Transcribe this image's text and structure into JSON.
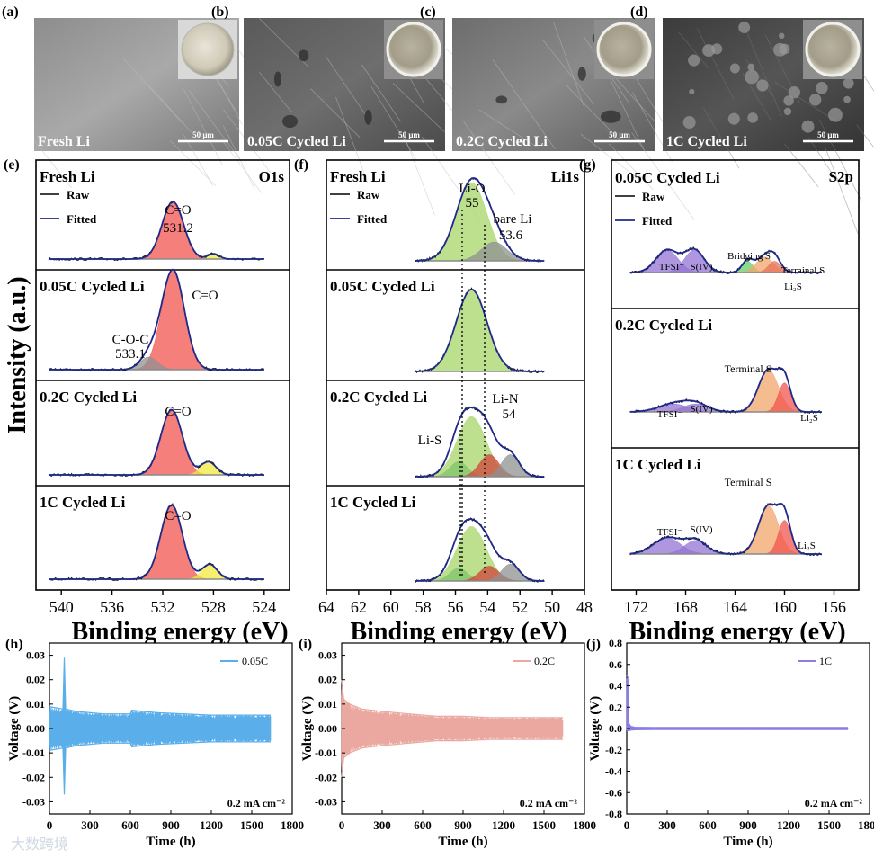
{
  "sem_panels": [
    {
      "letter": "(a)",
      "label": "Fresh Li",
      "scale": "50 μm"
    },
    {
      "letter": "(b)",
      "label": "0.05C Cycled Li",
      "scale": "50 μm"
    },
    {
      "letter": "(c)",
      "label": "0.2C Cycled Li",
      "scale": "50 μm"
    },
    {
      "letter": "(d)",
      "label": "1C Cycled Li",
      "scale": "50 μm"
    }
  ],
  "xps": {
    "y_label": "Intensity (a.u.)",
    "x_label": "Binding energy (eV)",
    "legend": {
      "raw": "Raw",
      "fitted": "Fitted"
    },
    "panels": [
      {
        "letter": "(e)",
        "element": "O1s",
        "xlim": [
          542,
          522
        ],
        "ticks": [
          540,
          536,
          532,
          528,
          524
        ],
        "rows": [
          {
            "label": "Fresh Li",
            "annotations": [
              "C=O",
              "531.2"
            ]
          },
          {
            "label": "0.05C Cycled Li",
            "annotations": [
              "C=O",
              "C-O-C",
              "533.1"
            ]
          },
          {
            "label": "0.2C Cycled Li",
            "annotations": [
              "C=O"
            ]
          },
          {
            "label": "1C Cycled Li",
            "annotations": [
              "C=O"
            ]
          }
        ]
      },
      {
        "letter": "(f)",
        "element": "Li1s",
        "xlim": [
          64,
          48
        ],
        "ticks": [
          64,
          62,
          60,
          58,
          56,
          54,
          52,
          50,
          48
        ],
        "rows": [
          {
            "label": "Fresh Li",
            "annotations": [
              "Li-O",
              "55",
              "bare Li",
              "53.6"
            ]
          },
          {
            "label": "0.05C Cycled Li",
            "annotations": []
          },
          {
            "label": "0.2C Cycled Li",
            "annotations": [
              "Li-N",
              "54",
              "Li-S"
            ]
          },
          {
            "label": "1C Cycled Li",
            "annotations": []
          }
        ]
      },
      {
        "letter": "(g)",
        "element": "S2p",
        "xlim": [
          174,
          154
        ],
        "ticks": [
          172,
          168,
          164,
          160,
          156
        ],
        "rows": [
          {
            "label": "0.05C Cycled Li",
            "annotations": [
              "TFSI⁻",
              "S(IV)",
              "Bridging S",
              "Terminal S",
              "Li₂S"
            ]
          },
          {
            "label": "0.2C Cycled Li",
            "annotations": [
              "Terminal S",
              "TFSI⁻",
              "S(IV)",
              "Li₂S"
            ]
          },
          {
            "label": "1C Cycled Li",
            "annotations": [
              "Terminal S",
              "TFSI⁻",
              "S(IV)",
              "Li₂S"
            ]
          }
        ]
      }
    ]
  },
  "chart_data": [
    {
      "type": "line",
      "panel": "(h)",
      "title": "",
      "xlabel": "Time (h)",
      "ylabel": "Voltage (V)",
      "xlim": [
        0,
        1800
      ],
      "ylim": [
        -0.035,
        0.035
      ],
      "xticks": [
        0,
        300,
        600,
        900,
        1200,
        1500,
        1800
      ],
      "yticks": [
        -0.03,
        -0.02,
        -0.01,
        0.0,
        0.01,
        0.02,
        0.03
      ],
      "ytick_labels": [
        "-0.03",
        "-0.02",
        "-0.01",
        "0.00",
        "0.01",
        "0.02",
        "0.03"
      ],
      "series": [
        {
          "name": "0.05C",
          "color": "#5aaeea",
          "envelope_x": [
            0,
            100,
            110,
            120,
            200,
            400,
            600,
            610,
            800,
            1000,
            1200,
            1400,
            1640
          ],
          "envelope_upper": [
            0.009,
            0.008,
            0.029,
            0.008,
            0.007,
            0.006,
            0.006,
            0.0075,
            0.0065,
            0.006,
            0.0055,
            0.0055,
            0.0055
          ],
          "envelope_lower": [
            -0.009,
            -0.008,
            -0.027,
            -0.008,
            -0.007,
            -0.006,
            -0.006,
            -0.0075,
            -0.0065,
            -0.006,
            -0.0055,
            -0.0055,
            -0.0055
          ]
        }
      ],
      "annotation": "0.2 mA cm⁻²"
    },
    {
      "type": "line",
      "panel": "(i)",
      "title": "",
      "xlabel": "Time (h)",
      "ylabel": "Voltage (V)",
      "xlim": [
        0,
        1800
      ],
      "ylim": [
        -0.035,
        0.035
      ],
      "xticks": [
        0,
        300,
        600,
        900,
        1200,
        1500,
        1800
      ],
      "yticks": [
        -0.03,
        -0.02,
        -0.01,
        0.0,
        0.01,
        0.02,
        0.03
      ],
      "ytick_labels": [
        "-0.03",
        "-0.02",
        "-0.01",
        "0.00",
        "0.01",
        "0.02",
        "0.03"
      ],
      "series": [
        {
          "name": "0.2C",
          "color": "#eba8a0",
          "envelope_x": [
            0,
            15,
            60,
            150,
            300,
            500,
            700,
            900,
            1100,
            1300,
            1500,
            1640
          ],
          "envelope_upper": [
            0.02,
            0.012,
            0.01,
            0.008,
            0.007,
            0.006,
            0.005,
            0.005,
            0.0045,
            0.0045,
            0.0045,
            0.0045
          ],
          "envelope_lower": [
            -0.02,
            -0.012,
            -0.01,
            -0.008,
            -0.007,
            -0.006,
            -0.005,
            -0.005,
            -0.0045,
            -0.0045,
            -0.0045,
            -0.0045
          ]
        }
      ],
      "annotation": "0.2 mA cm⁻²"
    },
    {
      "type": "line",
      "panel": "(j)",
      "title": "",
      "xlabel": "Time (h)",
      "ylabel": "Voltage (V)",
      "xlim": [
        0,
        1800
      ],
      "ylim": [
        -0.8,
        0.8
      ],
      "xticks": [
        0,
        300,
        600,
        900,
        1200,
        1500,
        1800
      ],
      "yticks": [
        -0.8,
        -0.6,
        -0.4,
        -0.2,
        0.0,
        0.2,
        0.4,
        0.6,
        0.8
      ],
      "ytick_labels": [
        "-0.8",
        "-0.6",
        "-0.4",
        "-0.2",
        "0.0",
        "0.2",
        "0.4",
        "0.6",
        "0.8"
      ],
      "series": [
        {
          "name": "1C",
          "color": "#8a7fe6",
          "envelope_x": [
            0,
            8,
            15,
            30,
            60,
            200,
            600,
            1000,
            1400,
            1640
          ],
          "envelope_upper": [
            0.5,
            0.48,
            0.05,
            0.02,
            0.012,
            0.01,
            0.01,
            0.01,
            0.01,
            0.01
          ],
          "envelope_lower": [
            -0.02,
            -0.02,
            -0.02,
            -0.015,
            -0.012,
            -0.01,
            -0.01,
            -0.01,
            -0.01,
            -0.01
          ]
        }
      ],
      "annotation": "0.2 mA cm⁻²"
    }
  ],
  "watermark": "大数跨境"
}
